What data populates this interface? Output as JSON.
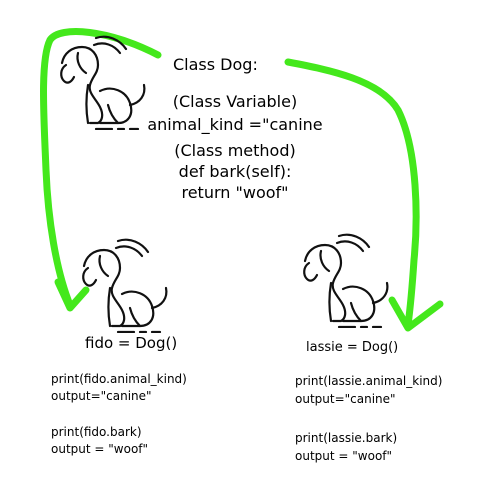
{
  "colors": {
    "arrow": "#44e81c",
    "ink": "#111111"
  },
  "class_block": {
    "title": "Class Dog:",
    "lines": [
      "(Class Variable)",
      "animal_kind =\"canine",
      "(Class method)",
      "def bark(self):",
      "return \"woof\""
    ]
  },
  "instances": [
    {
      "declaration": "fido = Dog()",
      "code": [
        "print(fido.animal_kind)",
        "output=\"canine\"",
        "print(fido.bark)",
        "output = \"woof\""
      ]
    },
    {
      "declaration": "lassie = Dog()",
      "code": [
        "print(lassie.animal_kind)",
        "output=\"canine\"",
        "print(lassie.bark)",
        "output = \"woof\""
      ]
    }
  ],
  "icons": [
    "dog-icon"
  ]
}
